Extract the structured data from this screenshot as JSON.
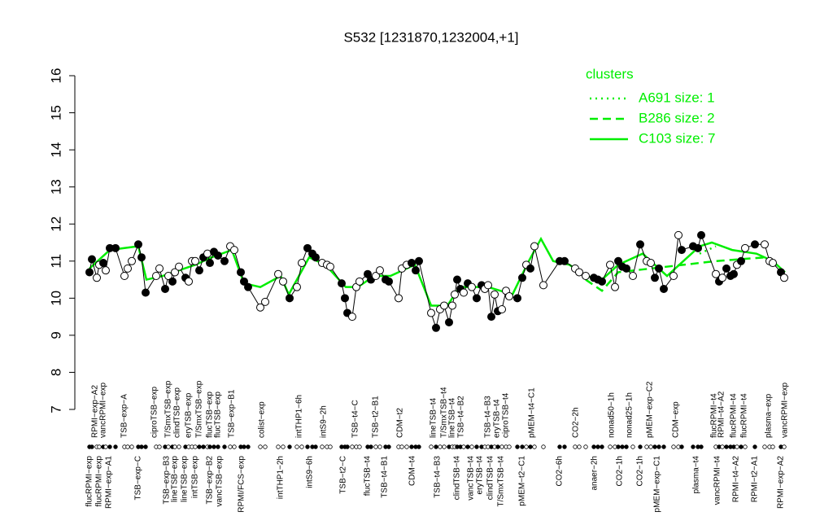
{
  "chart_data": {
    "type": "scatter",
    "title": "S532 [1231870,1232004,+1]",
    "ylim": [
      7,
      16
    ],
    "yticks": [
      7,
      8,
      9,
      10,
      11,
      12,
      13,
      14,
      15,
      16
    ],
    "xlim": [
      100,
      972
    ],
    "points": {
      "x": [
        110,
        113,
        119,
        122,
        127,
        130,
        135,
        142,
        153,
        157,
        162,
        170,
        174,
        179,
        192,
        196,
        203,
        207,
        212,
        215,
        220,
        228,
        232,
        236,
        240,
        245,
        250,
        255,
        258,
        263,
        268,
        276,
        283,
        288,
        296,
        300,
        305,
        320,
        326,
        342,
        348,
        356,
        365,
        371,
        378,
        384,
        388,
        396,
        402,
        406,
        420,
        424,
        427,
        433,
        438,
        442,
        452,
        456,
        462,
        467,
        474,
        478,
        490,
        494,
        500,
        506,
        511,
        515,
        530,
        536,
        541,
        546,
        552,
        556,
        559,
        562,
        566,
        570,
        575,
        580,
        586,
        592,
        596,
        600,
        604,
        608,
        612,
        617,
        622,
        626,
        636,
        642,
        647,
        652,
        657,
        668,
        688,
        694,
        707,
        712,
        720,
        730,
        735,
        740,
        750,
        756,
        760,
        765,
        770,
        778,
        787,
        795,
        800,
        805,
        810,
        816,
        828,
        834,
        838,
        852,
        858,
        862,
        880,
        884,
        888,
        893,
        898,
        902,
        906,
        911,
        916,
        928,
        940,
        946,
        950,
        960,
        964
      ],
      "values": [
        10.7,
        11.05,
        10.55,
        10.9,
        10.95,
        10.75,
        11.35,
        11.35,
        10.6,
        10.8,
        11.0,
        11.45,
        11.1,
        10.15,
        10.6,
        10.8,
        10.25,
        10.6,
        10.45,
        10.7,
        10.85,
        10.55,
        10.45,
        11.0,
        11.0,
        10.75,
        11.1,
        11.2,
        10.95,
        11.25,
        11.15,
        11.0,
        11.4,
        11.3,
        10.7,
        10.45,
        10.3,
        9.75,
        9.9,
        10.65,
        10.45,
        10.0,
        10.3,
        10.95,
        11.35,
        11.2,
        11.1,
        10.95,
        10.9,
        10.85,
        10.4,
        10.0,
        9.6,
        9.5,
        10.3,
        10.45,
        10.65,
        10.5,
        10.6,
        10.75,
        10.5,
        10.45,
        10.0,
        10.8,
        10.9,
        10.95,
        10.75,
        11.0,
        9.6,
        9.2,
        9.7,
        9.8,
        9.35,
        9.8,
        10.1,
        10.5,
        10.25,
        10.15,
        10.4,
        10.3,
        10.0,
        10.35,
        10.25,
        10.35,
        9.5,
        10.1,
        9.65,
        9.7,
        10.2,
        10.05,
        10.0,
        10.55,
        10.9,
        10.8,
        11.4,
        10.35,
        11.0,
        11.0,
        10.8,
        10.7,
        10.6,
        10.55,
        10.5,
        10.45,
        10.9,
        10.3,
        11.0,
        10.85,
        10.8,
        10.6,
        11.45,
        11.0,
        10.95,
        10.55,
        10.8,
        10.25,
        10.6,
        11.7,
        11.3,
        11.4,
        11.35,
        11.7,
        10.65,
        10.45,
        10.55,
        10.8,
        10.6,
        10.65,
        10.9,
        11.0,
        11.35,
        11.45,
        11.45,
        11.0,
        10.95,
        10.7,
        10.55
      ],
      "filled": [
        true,
        true,
        false,
        false,
        true,
        false,
        true,
        true,
        false,
        false,
        false,
        true,
        true,
        true,
        false,
        false,
        true,
        false,
        true,
        false,
        false,
        true,
        false,
        false,
        false,
        true,
        true,
        false,
        true,
        true,
        true,
        true,
        false,
        false,
        true,
        true,
        true,
        false,
        false,
        false,
        false,
        true,
        false,
        false,
        true,
        true,
        true,
        false,
        false,
        false,
        true,
        true,
        true,
        false,
        false,
        false,
        true,
        true,
        false,
        false,
        true,
        true,
        false,
        false,
        false,
        true,
        true,
        true,
        false,
        true,
        false,
        false,
        true,
        false,
        false,
        true,
        true,
        false,
        true,
        false,
        true,
        true,
        false,
        false,
        true,
        false,
        true,
        false,
        false,
        false,
        true,
        true,
        false,
        true,
        false,
        false,
        true,
        true,
        false,
        false,
        false,
        true,
        true,
        true,
        false,
        false,
        true,
        true,
        true,
        false,
        true,
        false,
        false,
        true,
        true,
        true,
        false,
        false,
        true,
        true,
        true,
        true,
        false,
        true,
        false,
        true,
        true,
        true,
        false,
        true,
        false,
        true,
        false,
        false,
        false,
        true,
        false
      ]
    },
    "labels_top": [
      {
        "x": 117,
        "label": "RPMI−exp−A2"
      },
      {
        "x": 127,
        "label": "vancRPMI−exp"
      },
      {
        "x": 153,
        "label": "TSB−exp−A"
      },
      {
        "x": 190,
        "label": "ciproTSB−exp"
      },
      {
        "x": 207,
        "label": "T/SmxTSB−exp"
      },
      {
        "x": 218,
        "label": "clindTSB−exp"
      },
      {
        "x": 232,
        "label": "eryTSB−exp"
      },
      {
        "x": 245,
        "label": "T/SmxTSB−exp"
      },
      {
        "x": 258,
        "label": "flucTSB−exp"
      },
      {
        "x": 268,
        "label": "flucTSB−exp"
      },
      {
        "x": 285,
        "label": "TSB−exp−B1"
      },
      {
        "x": 322,
        "label": "colist−exp"
      },
      {
        "x": 368,
        "label": "intTHP1−6h"
      },
      {
        "x": 398,
        "label": "intS9−2h"
      },
      {
        "x": 437,
        "label": "TSB−t4−C"
      },
      {
        "x": 462,
        "label": "TSB−t2−B1"
      },
      {
        "x": 492,
        "label": "CDM−t2"
      },
      {
        "x": 533,
        "label": "lineTSB−t4"
      },
      {
        "x": 546,
        "label": "T/SmxTSB−t4"
      },
      {
        "x": 556,
        "label": "lineTSB−t4"
      },
      {
        "x": 567,
        "label": "TSB−t4−B2"
      },
      {
        "x": 600,
        "label": "TSB−t4−B3"
      },
      {
        "x": 611,
        "label": "eryTSB−t4"
      },
      {
        "x": 622,
        "label": "ciproTSB−t4"
      },
      {
        "x": 654,
        "label": "pMEM−t4−C1"
      },
      {
        "x": 708,
        "label": "CO2−2h"
      },
      {
        "x": 752,
        "label": "nonad50−1h"
      },
      {
        "x": 774,
        "label": "nonad25−1h"
      },
      {
        "x": 799,
        "label": "pMEM−exp−C2"
      },
      {
        "x": 831,
        "label": "CDM−exp"
      },
      {
        "x": 878,
        "label": "flucRPMI−t4"
      },
      {
        "x": 887,
        "label": "RPMI−t4−A2"
      },
      {
        "x": 902,
        "label": "flucRPMI−t4"
      },
      {
        "x": 915,
        "label": "flucRPMI−t4"
      },
      {
        "x": 945,
        "label": "plasma−exp"
      },
      {
        "x": 965,
        "label": "vancRPMI−exp"
      }
    ],
    "labels_bottom": [
      {
        "x": 110,
        "label": "flucRPMI−exp"
      },
      {
        "x": 122,
        "label": "flucRPMI−exp"
      },
      {
        "x": 134,
        "label": "RPMI−exp−A1"
      },
      {
        "x": 170,
        "label": "TSB−exp−C"
      },
      {
        "x": 205,
        "label": "TSB−exp−B3"
      },
      {
        "x": 215,
        "label": "lineTSB−exp"
      },
      {
        "x": 227,
        "label": "lineTSB−exp"
      },
      {
        "x": 240,
        "label": "intTSB−exp"
      },
      {
        "x": 258,
        "label": "TSB−exp−B2"
      },
      {
        "x": 270,
        "label": "vancTSB−exp"
      },
      {
        "x": 297,
        "label": "RPMI/FCS−exp"
      },
      {
        "x": 345,
        "label": "intTHP1−2h"
      },
      {
        "x": 381,
        "label": "intS9−6h"
      },
      {
        "x": 422,
        "label": "TSB−t2−C"
      },
      {
        "x": 452,
        "label": "flucTSB−t4"
      },
      {
        "x": 473,
        "label": "TSB−t4−B1"
      },
      {
        "x": 507,
        "label": "CDM−t4"
      },
      {
        "x": 538,
        "label": "TSB−t4−B3"
      },
      {
        "x": 562,
        "label": "clindTSB−t4"
      },
      {
        "x": 579,
        "label": "vancTSB−t4"
      },
      {
        "x": 590,
        "label": "eryTSB−t4"
      },
      {
        "x": 603,
        "label": "clindTSB−t4"
      },
      {
        "x": 616,
        "label": "T/SmxTSB−t4"
      },
      {
        "x": 642,
        "label": "pMEM−t2−C1"
      },
      {
        "x": 688,
        "label": "CO2−6h"
      },
      {
        "x": 731,
        "label": "anaer−2h"
      },
      {
        "x": 762,
        "label": "CO2−1h"
      },
      {
        "x": 787,
        "label": "CO2−1h"
      },
      {
        "x": 808,
        "label": "pMEM−exp−C1"
      },
      {
        "x": 856,
        "label": "plasma−t4"
      },
      {
        "x": 882,
        "label": "vancRPMI−t4"
      },
      {
        "x": 905,
        "label": "RPMI−t4−A2"
      },
      {
        "x": 928,
        "label": "RPMI−t2−A1"
      },
      {
        "x": 960,
        "label": "RPMI−exp−A2"
      }
    ],
    "legend_title": "clusters",
    "series": [
      {
        "name": "A691 size: 1",
        "color": "#00ee00",
        "dash": "dotted",
        "x": [
          860,
          880
        ],
        "values": [
          11.2,
          11.4
        ]
      },
      {
        "name": "B286 size: 2",
        "color": "#00ee00",
        "dash": "dashed",
        "x": [
          720,
          740,
          760,
          880,
          940
        ],
        "values": [
          10.5,
          10.2,
          10.7,
          11.0,
          11.1
        ]
      },
      {
        "name": "C103 size: 7",
        "color": "#00ee00",
        "dash": "solid",
        "x": [
          110,
          135,
          170,
          180,
          200,
          240,
          260,
          285,
          300,
          320,
          345,
          355,
          380,
          400,
          425,
          440,
          460,
          480,
          510,
          530,
          550,
          565,
          600,
          630,
          650,
          665,
          680,
          700,
          720,
          740,
          760,
          790,
          820,
          840,
          860,
          875,
          900,
          930,
          950,
          965
        ],
        "values": [
          10.8,
          11.3,
          11.4,
          10.5,
          10.6,
          10.9,
          11.1,
          11.3,
          10.4,
          10.3,
          10.6,
          10.1,
          11.1,
          10.9,
          10.3,
          10.3,
          10.6,
          10.6,
          10.9,
          9.8,
          9.8,
          10.3,
          10.3,
          10.1,
          11.0,
          11.6,
          11.0,
          10.9,
          10.6,
          10.5,
          10.9,
          11.2,
          10.6,
          11.0,
          11.4,
          11.5,
          11.3,
          11.2,
          11.0,
          10.7
        ]
      }
    ]
  }
}
